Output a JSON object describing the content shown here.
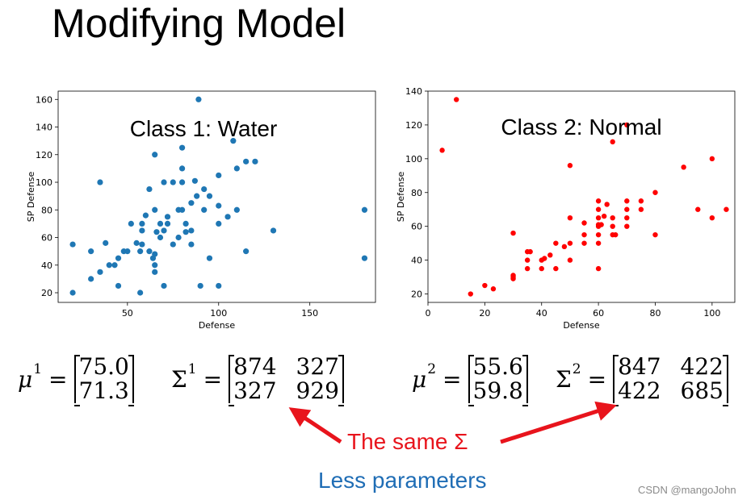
{
  "slide": {
    "title": "Modifying Model"
  },
  "chart_data": [
    {
      "type": "scatter",
      "annotation": "Class 1: Water",
      "xlabel": "Defense",
      "ylabel": "SP Defense",
      "xlim": [
        12,
        186
      ],
      "ylim": [
        13,
        166
      ],
      "xticks": [
        50,
        100,
        150
      ],
      "yticks": [
        20,
        40,
        60,
        80,
        100,
        120,
        140,
        160
      ],
      "color": "#1f77b4",
      "points": [
        [
          20,
          55
        ],
        [
          20,
          20
        ],
        [
          30,
          50
        ],
        [
          30,
          30
        ],
        [
          35,
          100
        ],
        [
          35,
          35
        ],
        [
          38,
          56
        ],
        [
          40,
          40
        ],
        [
          43,
          40
        ],
        [
          45,
          25
        ],
        [
          45,
          45
        ],
        [
          48,
          50
        ],
        [
          50,
          50
        ],
        [
          52,
          70
        ],
        [
          55,
          56
        ],
        [
          57,
          50
        ],
        [
          58,
          55
        ],
        [
          57,
          20
        ],
        [
          58,
          65
        ],
        [
          58,
          70
        ],
        [
          60,
          76
        ],
        [
          62,
          95
        ],
        [
          62,
          50
        ],
        [
          64,
          45
        ],
        [
          65,
          48
        ],
        [
          65,
          35
        ],
        [
          65,
          40
        ],
        [
          65,
          120
        ],
        [
          65,
          80
        ],
        [
          66,
          64
        ],
        [
          68,
          70
        ],
        [
          68,
          60
        ],
        [
          70,
          100
        ],
        [
          70,
          25
        ],
        [
          70,
          65
        ],
        [
          72,
          70
        ],
        [
          72,
          75
        ],
        [
          75,
          100
        ],
        [
          75,
          55
        ],
        [
          78,
          60
        ],
        [
          78,
          80
        ],
        [
          80,
          125
        ],
        [
          80,
          110
        ],
        [
          80,
          100
        ],
        [
          80,
          80
        ],
        [
          82,
          70
        ],
        [
          82,
          64
        ],
        [
          85,
          85
        ],
        [
          85,
          55
        ],
        [
          85,
          65
        ],
        [
          87,
          101
        ],
        [
          88,
          90
        ],
        [
          89,
          160
        ],
        [
          90,
          25
        ],
        [
          92,
          95
        ],
        [
          92,
          80
        ],
        [
          95,
          90
        ],
        [
          95,
          45
        ],
        [
          100,
          105
        ],
        [
          100,
          83
        ],
        [
          100,
          70
        ],
        [
          100,
          25
        ],
        [
          105,
          75
        ],
        [
          108,
          130
        ],
        [
          110,
          80
        ],
        [
          110,
          110
        ],
        [
          115,
          115
        ],
        [
          115,
          50
        ],
        [
          120,
          115
        ],
        [
          130,
          65
        ],
        [
          180,
          80
        ],
        [
          180,
          45
        ]
      ]
    },
    {
      "type": "scatter",
      "annotation": "Class 2: Normal",
      "xlabel": "Defense",
      "ylabel": "SP Defense",
      "xlim": [
        0,
        108
      ],
      "ylim": [
        15,
        140
      ],
      "xticks": [
        0,
        20,
        40,
        60,
        80,
        100
      ],
      "yticks": [
        20,
        40,
        60,
        80,
        100,
        120,
        140
      ],
      "color": "#ff0000",
      "points": [
        [
          5,
          105
        ],
        [
          10,
          135
        ],
        [
          15,
          20
        ],
        [
          20,
          25
        ],
        [
          23,
          23
        ],
        [
          30,
          30
        ],
        [
          30,
          31
        ],
        [
          30,
          56
        ],
        [
          30,
          29
        ],
        [
          35,
          45
        ],
        [
          35,
          40
        ],
        [
          35,
          35
        ],
        [
          36,
          45
        ],
        [
          40,
          40
        ],
        [
          40,
          35
        ],
        [
          41,
          41
        ],
        [
          43,
          43
        ],
        [
          45,
          50
        ],
        [
          45,
          35
        ],
        [
          48,
          48
        ],
        [
          50,
          96
        ],
        [
          50,
          65
        ],
        [
          50,
          50
        ],
        [
          50,
          40
        ],
        [
          55,
          62
        ],
        [
          55,
          55
        ],
        [
          55,
          50
        ],
        [
          60,
          75
        ],
        [
          60,
          70
        ],
        [
          60,
          65
        ],
        [
          60,
          60
        ],
        [
          60,
          61
        ],
        [
          60,
          55
        ],
        [
          60,
          50
        ],
        [
          60,
          35
        ],
        [
          61,
          61
        ],
        [
          62,
          66
        ],
        [
          63,
          73
        ],
        [
          65,
          110
        ],
        [
          65,
          65
        ],
        [
          65,
          60
        ],
        [
          65,
          55
        ],
        [
          66,
          55
        ],
        [
          70,
          120
        ],
        [
          70,
          75
        ],
        [
          70,
          70
        ],
        [
          70,
          65
        ],
        [
          70,
          60
        ],
        [
          75,
          75
        ],
        [
          75,
          70
        ],
        [
          80,
          80
        ],
        [
          80,
          55
        ],
        [
          90,
          95
        ],
        [
          95,
          70
        ],
        [
          100,
          100
        ],
        [
          100,
          65
        ],
        [
          105,
          70
        ]
      ]
    }
  ],
  "formulas": {
    "mu1": {
      "symbol": "μ",
      "sup": "1",
      "values": [
        "75.0",
        "71.3"
      ]
    },
    "sigma1": {
      "symbol": "Σ",
      "sup": "1",
      "values": [
        [
          "874",
          "327"
        ],
        [
          "327",
          "929"
        ]
      ]
    },
    "mu2": {
      "symbol": "μ",
      "sup": "2",
      "values": [
        "55.6",
        "59.8"
      ]
    },
    "sigma2": {
      "symbol": "Σ",
      "sup": "2",
      "values": [
        [
          "847",
          "422"
        ],
        [
          "422",
          "685"
        ]
      ]
    }
  },
  "annotations": {
    "same_sigma": "The same Σ",
    "less_params": "Less parameters",
    "same_color": "#e8141c",
    "less_color": "#1f6db5"
  },
  "watermark": "CSDN @mangoJohn"
}
